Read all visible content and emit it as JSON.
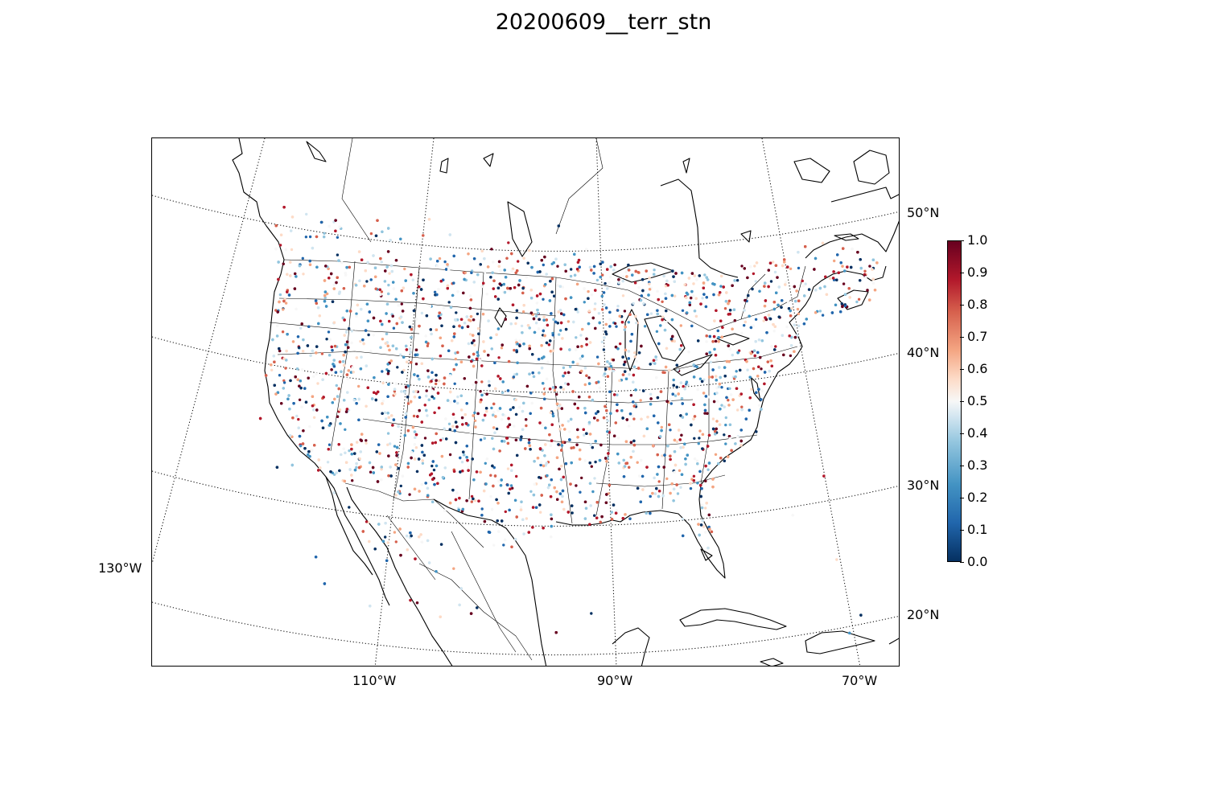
{
  "title": "20200609__terr_stn",
  "map": {
    "projection": "lambert-conformal",
    "longitude_labels": [
      "130°W",
      "110°W",
      "90°W",
      "70°W"
    ],
    "latitude_labels": [
      "50°N",
      "40°N",
      "30°N",
      "20°N"
    ],
    "graticule_style": "dotted"
  },
  "colorbar": {
    "colormap": "RdBu_r",
    "colors": [
      "#053061",
      "#2166ac",
      "#4393c3",
      "#92c5de",
      "#d1e5f0",
      "#f7f7f7",
      "#fddbc7",
      "#f4a582",
      "#d6604d",
      "#b2182b",
      "#67001f"
    ],
    "min": 0.0,
    "max": 1.0,
    "tick_labels": [
      "1.0",
      "0.9",
      "0.8",
      "0.7",
      "0.6",
      "0.5",
      "0.4",
      "0.3",
      "0.2",
      "0.1",
      "0.0"
    ]
  },
  "stations": {
    "marker": "small dots",
    "value_range": [
      0,
      1
    ]
  }
}
